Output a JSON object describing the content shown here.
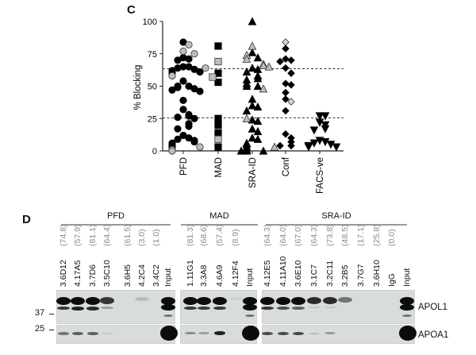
{
  "panel_c_label": "C",
  "panel_d_label": "D",
  "chart_data": {
    "type": "scatter",
    "ylabel": "% Blocking",
    "xlabel": "",
    "ylim": [
      0,
      100
    ],
    "yticks": [
      "0",
      "25",
      "50",
      "75",
      "100"
    ],
    "categories": [
      "PFD",
      "MAD",
      "SRA-ID",
      "Conf",
      "FACS-ve"
    ],
    "reference_lines": [
      63.5,
      25.5
    ],
    "grid": false,
    "colors": {
      "black": "#000000",
      "gray": "#bdbdbd",
      "gray_light": "#d6d6d6"
    },
    "series": [
      {
        "category": "PFD",
        "marker": "circle",
        "black": [
          84,
          72,
          71,
          70,
          65,
          65,
          64,
          63,
          62,
          61,
          60,
          54,
          50,
          50,
          49,
          48,
          47,
          46,
          39,
          32,
          28,
          27,
          26,
          25,
          21,
          19,
          17,
          12,
          10,
          9,
          8,
          7,
          6,
          5,
          4,
          3
        ],
        "gray": [
          82,
          77,
          75,
          64,
          58,
          3,
          1,
          0
        ]
      },
      {
        "category": "MAD",
        "marker": "square",
        "black": [
          81,
          60,
          53,
          25,
          20,
          14,
          3
        ],
        "gray": [
          69,
          57,
          9
        ]
      },
      {
        "category": "SRA-ID",
        "marker": "triangle-up",
        "black": [
          100,
          76,
          72,
          64,
          63,
          61,
          58,
          56,
          55,
          52,
          50,
          50,
          40,
          35,
          34,
          31,
          24,
          23,
          17,
          15,
          10,
          9,
          6,
          5,
          3,
          1,
          0,
          0,
          0
        ],
        "gray": [
          81,
          74,
          71,
          67,
          66,
          65,
          48,
          25,
          3
        ]
      },
      {
        "category": "Conf",
        "marker": "diamond",
        "black": [
          79,
          71,
          70,
          69,
          64,
          60,
          52,
          51,
          45,
          40,
          31,
          13,
          10,
          7,
          4,
          4
        ],
        "gray": [
          84,
          38
        ]
      },
      {
        "category": "FACS-ve",
        "marker": "triangle-down",
        "black": [
          27,
          27,
          22,
          20,
          17,
          16,
          8,
          7,
          6,
          5,
          4,
          3,
          3
        ],
        "gray": []
      }
    ]
  },
  "blot": {
    "markers": [
      "37",
      "25"
    ],
    "proteins": [
      "APOL1",
      "APOA1"
    ],
    "groups": [
      {
        "name": "PFD",
        "lanes": [
          {
            "label": "3.6D12",
            "value": "(74.8)",
            "apol1": [
              1,
              0.8
            ],
            "apoa1": 0.5
          },
          {
            "label": "4.17A5",
            "value": "(57.9)",
            "apol1": [
              1,
              0.9
            ],
            "apoa1": 0.6
          },
          {
            "label": "3.7D6",
            "value": "(81.1)",
            "apol1": [
              1,
              0.85
            ],
            "apoa1": 0.6
          },
          {
            "label": "3.5C10",
            "value": "(64.4)",
            "apol1": [
              0.8,
              0.3
            ],
            "apoa1": 0.1
          },
          {
            "label": "3.6H5",
            "value": "(61.5)",
            "apol1": [
              0,
              0
            ],
            "apoa1": 0
          },
          {
            "label": "4.2C4",
            "value": "(3.0)",
            "apol1": [
              0.15,
              0
            ],
            "apoa1": 0
          },
          {
            "label": "3.4C2",
            "value": "(1.0)",
            "apol1": [
              0,
              0
            ],
            "apoa1": 0
          },
          {
            "label": "Input",
            "value": "",
            "apol1": [
              1,
              1
            ],
            "apoa1": 1,
            "input": true
          }
        ]
      },
      {
        "name": "MAD",
        "lanes": [
          {
            "label": "1.11G1",
            "value": "(81.3)",
            "apol1": [
              1,
              0.8
            ],
            "apoa1": 0.4
          },
          {
            "label": "3.3A8",
            "value": "(68.6)",
            "apol1": [
              1,
              0.8
            ],
            "apoa1": 0.3
          },
          {
            "label": "4.6A9",
            "value": "(57.4)",
            "apol1": [
              1,
              0.8
            ],
            "apoa1": 0.9
          },
          {
            "label": "4.12F4",
            "value": "(8.9)",
            "apol1": [
              0.05,
              0
            ],
            "apoa1": 0
          },
          {
            "label": "Input",
            "value": "",
            "apol1": [
              1,
              1
            ],
            "apoa1": 1,
            "input": true
          }
        ]
      },
      {
        "name": "SRA-ID",
        "lanes": [
          {
            "label": "4.12E5",
            "value": "(64.3)",
            "apol1": [
              1,
              0.8
            ],
            "apoa1": 0.7
          },
          {
            "label": "4.11A10",
            "value": "(64.0)",
            "apol1": [
              1,
              0.7
            ],
            "apoa1": 0.7
          },
          {
            "label": "3.6E10",
            "value": "(67.0)",
            "apol1": [
              1,
              0.6
            ],
            "apoa1": 0.7
          },
          {
            "label": "3.1C7",
            "value": "(64.3)",
            "apol1": [
              0.85,
              0.1
            ],
            "apoa1": 0.15
          },
          {
            "label": "3.2C11",
            "value": "(73.8)",
            "apol1": [
              0.85,
              0.1
            ],
            "apoa1": 0.3
          },
          {
            "label": "3.2B5",
            "value": "(48.5)",
            "apol1": [
              0.5,
              0
            ],
            "apoa1": 0
          },
          {
            "label": "3.7G7",
            "value": "(17.1)",
            "apol1": [
              0,
              0
            ],
            "apoa1": 0
          },
          {
            "label": "3.6H10",
            "value": "(25.8)",
            "apol1": [
              0,
              0
            ],
            "apoa1": 0
          },
          {
            "label": "IgG",
            "value": "(0.0)",
            "apol1": [
              0,
              0
            ],
            "apoa1": 0
          },
          {
            "label": "Input",
            "value": "",
            "apol1": [
              1,
              1
            ],
            "apoa1": 1,
            "input": true
          }
        ]
      }
    ]
  }
}
